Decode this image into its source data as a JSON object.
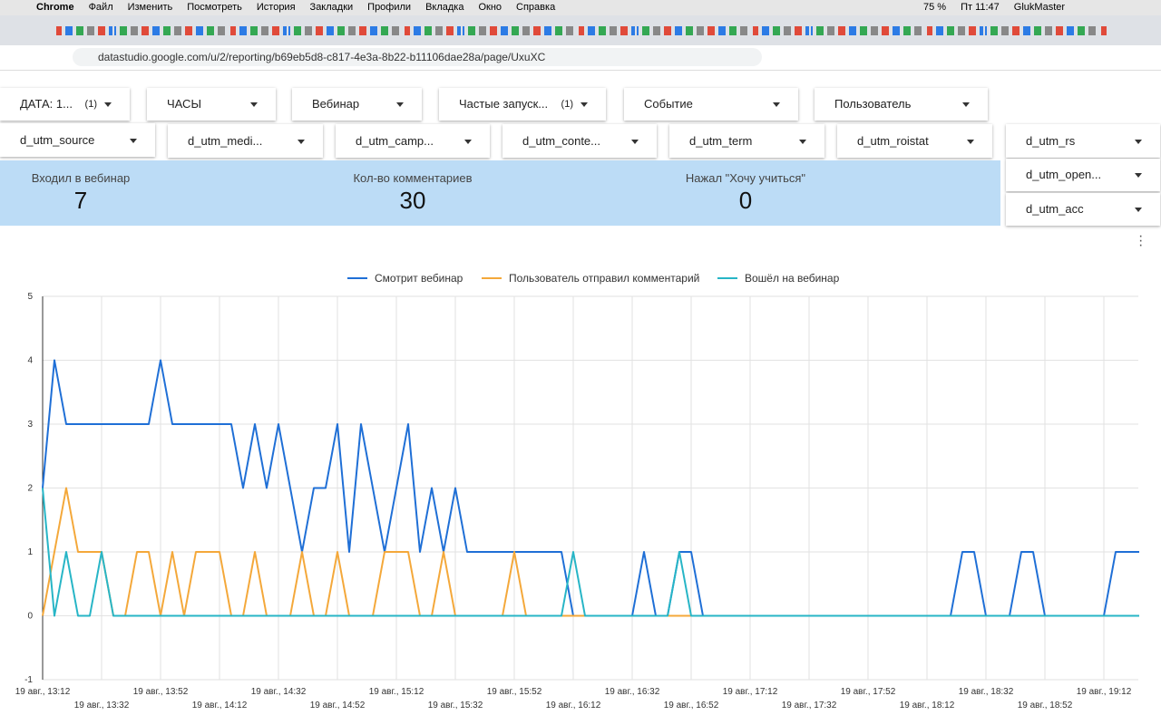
{
  "menubar": {
    "items": [
      "Chrome",
      "Файл",
      "Изменить",
      "Посмотреть",
      "История",
      "Закладки",
      "Профили",
      "Вкладка",
      "Окно",
      "Справка"
    ],
    "battery": "75 %",
    "clock": "Пт 11:47",
    "user": "GlukMaster"
  },
  "address_bar": {
    "url": "datastudio.google.com/u/2/reporting/b69eb5d8-c817-4e3a-8b22-b11106dae28a/page/UxuXC"
  },
  "filters": {
    "row1": [
      {
        "label": "ДАТА: 1...",
        "count": "(1)"
      },
      {
        "label": "ЧАСЫ"
      },
      {
        "label": "Вебинар"
      },
      {
        "label": "Частые запуск...",
        "count": "(1)"
      },
      {
        "label": "Событие"
      },
      {
        "label": "Пользователь"
      }
    ],
    "row2": [
      "d_utm_source",
      "d_utm_medi...",
      "d_utm_camp...",
      "d_utm_conte...",
      "d_utm_term",
      "d_utm_roistat",
      "d_utm_rs"
    ],
    "side": [
      "d_utm_open...",
      "d_utm_acc"
    ]
  },
  "scorecards": [
    {
      "label": "Входил в вебинар",
      "value": 7
    },
    {
      "label": "Кол-во комментариев",
      "value": 30
    },
    {
      "label": "Нажал \"Хочу учиться\"",
      "value": 0
    }
  ],
  "chart_data": {
    "type": "line",
    "categories": [
      "19 авг., 13:12",
      null,
      null,
      null,
      null,
      "19 авг., 13:32",
      null,
      null,
      null,
      null,
      "19 авг., 13:52",
      null,
      null,
      null,
      null,
      "19 авг., 14:12",
      null,
      null,
      null,
      null,
      "19 авг., 14:32",
      null,
      null,
      null,
      null,
      "19 авг., 14:52",
      null,
      null,
      null,
      null,
      "19 авг., 15:12",
      null,
      null,
      null,
      null,
      "19 авг., 15:32",
      null,
      null,
      null,
      null,
      "19 авг., 15:52",
      null,
      null,
      null,
      null,
      "19 авг., 16:12",
      null,
      null,
      null,
      null,
      "19 авг., 16:32",
      null,
      null,
      null,
      null,
      "19 авг., 16:52",
      null,
      null,
      null,
      null,
      "19 авг., 17:12",
      null,
      null,
      null,
      null,
      "19 авг., 17:32",
      null,
      null,
      null,
      null,
      "19 авг., 17:52",
      null,
      null,
      null,
      null,
      "19 авг., 18:12",
      null,
      null,
      null,
      null,
      "19 авг., 18:32",
      null,
      null,
      null,
      null,
      "19 авг., 18:52",
      null,
      null,
      null,
      null,
      "19 авг., 19:12",
      null,
      null,
      null
    ],
    "series": [
      {
        "name": "Смотрит вебинар",
        "color": "#1f6fd6",
        "values": [
          2,
          4,
          3,
          3,
          3,
          3,
          3,
          3,
          3,
          3,
          4,
          3,
          3,
          3,
          3,
          3,
          3,
          2,
          3,
          2,
          3,
          2,
          1,
          2,
          2,
          3,
          1,
          3,
          2,
          1,
          2,
          3,
          1,
          2,
          1,
          2,
          1,
          1,
          1,
          1,
          1,
          1,
          1,
          1,
          1,
          0,
          0,
          0,
          0,
          0,
          0,
          1,
          0,
          0,
          1,
          1,
          0,
          0,
          0,
          0,
          0,
          0,
          0,
          0,
          0,
          0,
          0,
          0,
          0,
          0,
          0,
          0,
          0,
          0,
          0,
          0,
          0,
          0,
          1,
          1,
          0,
          0,
          0,
          1,
          1,
          0,
          0,
          0,
          0,
          0,
          0,
          1,
          1,
          1
        ]
      },
      {
        "name": "Пользователь отправил комментарий",
        "color": "#f4a83a",
        "values": [
          0,
          1,
          2,
          1,
          1,
          1,
          0,
          0,
          1,
          1,
          0,
          1,
          0,
          1,
          1,
          1,
          0,
          0,
          1,
          0,
          0,
          0,
          1,
          0,
          0,
          1,
          0,
          0,
          0,
          1,
          1,
          1,
          0,
          0,
          1,
          0,
          0,
          0,
          0,
          0,
          1,
          0,
          0,
          0,
          0,
          0,
          0,
          0,
          0,
          0,
          0,
          0,
          0,
          0,
          0,
          0,
          0,
          0,
          0,
          0,
          0,
          0,
          0,
          0,
          0,
          0,
          0,
          0,
          0,
          0,
          0,
          0,
          0,
          0,
          0,
          0,
          0,
          0,
          0,
          0,
          0,
          0,
          0,
          0,
          0,
          0,
          0,
          0,
          0,
          0,
          0,
          0,
          0,
          0
        ]
      },
      {
        "name": "Вошёл на вебинар",
        "color": "#27b5c6",
        "values": [
          2,
          0,
          1,
          0,
          0,
          1,
          0,
          0,
          0,
          0,
          0,
          0,
          0,
          0,
          0,
          0,
          0,
          0,
          0,
          0,
          0,
          0,
          0,
          0,
          0,
          0,
          0,
          0,
          0,
          0,
          0,
          0,
          0,
          0,
          0,
          0,
          0,
          0,
          0,
          0,
          0,
          0,
          0,
          0,
          0,
          1,
          0,
          0,
          0,
          0,
          0,
          0,
          0,
          0,
          1,
          0,
          0,
          0,
          0,
          0,
          0,
          0,
          0,
          0,
          0,
          0,
          0,
          0,
          0,
          0,
          0,
          0,
          0,
          0,
          0,
          0,
          0,
          0,
          0,
          0,
          0,
          0,
          0,
          0,
          0,
          0,
          0,
          0,
          0,
          0,
          0,
          0,
          0,
          0
        ]
      }
    ],
    "ylim": [
      -1,
      5
    ],
    "yticks": [
      -1,
      0,
      1,
      2,
      3,
      4,
      5
    ],
    "grid": true,
    "legend": "top"
  }
}
